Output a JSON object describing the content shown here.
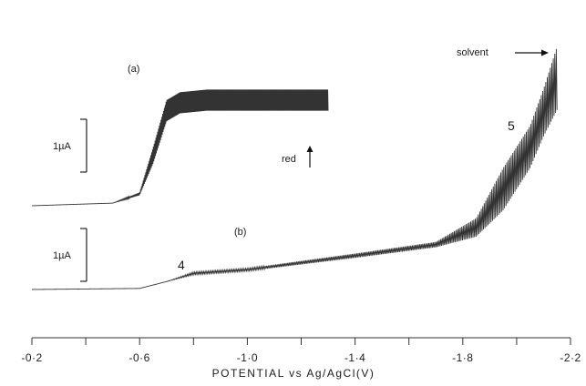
{
  "chart_data": {
    "type": "line",
    "xlabel": "POTENTIAL vs Ag/AgCl(V)",
    "ylabel": "",
    "xlim": [
      -0.2,
      -2.2
    ],
    "x_ticks": [
      "-0·2",
      "-0·6",
      "-1·0",
      "-1·4",
      "-1·8",
      "-2·2"
    ],
    "x_tick_values": [
      -0.2,
      -0.6,
      -1.0,
      -1.4,
      -1.8,
      -2.2
    ],
    "scale_bar_label": "1µA",
    "series": [
      {
        "name": "(a)",
        "envelope_low": [
          [
            -0.2,
            0.0
          ],
          [
            -0.5,
            0.05
          ],
          [
            -0.6,
            0.2
          ],
          [
            -0.65,
            0.8
          ],
          [
            -0.7,
            1.6
          ],
          [
            -0.75,
            1.75
          ],
          [
            -0.85,
            1.8
          ],
          [
            -1.3,
            1.8
          ]
        ],
        "envelope_high": [
          [
            -0.2,
            0.0
          ],
          [
            -0.5,
            0.05
          ],
          [
            -0.6,
            0.25
          ],
          [
            -0.65,
            1.1
          ],
          [
            -0.7,
            2.0
          ],
          [
            -0.75,
            2.15
          ],
          [
            -0.85,
            2.2
          ],
          [
            -1.3,
            2.2
          ]
        ]
      },
      {
        "name": "(b)",
        "envelope_low": [
          [
            -0.2,
            0.0
          ],
          [
            -0.6,
            0.02
          ],
          [
            -0.7,
            0.15
          ],
          [
            -0.8,
            0.28
          ],
          [
            -1.0,
            0.35
          ],
          [
            -1.4,
            0.6
          ],
          [
            -1.7,
            0.8
          ],
          [
            -1.85,
            1.0
          ],
          [
            -1.95,
            1.5
          ],
          [
            -2.05,
            2.3
          ],
          [
            -2.1,
            2.9
          ],
          [
            -2.15,
            3.4
          ]
        ],
        "envelope_high": [
          [
            -0.2,
            0.0
          ],
          [
            -0.6,
            0.02
          ],
          [
            -0.7,
            0.15
          ],
          [
            -0.8,
            0.33
          ],
          [
            -1.0,
            0.4
          ],
          [
            -1.4,
            0.68
          ],
          [
            -1.7,
            0.9
          ],
          [
            -1.85,
            1.35
          ],
          [
            -1.95,
            2.3
          ],
          [
            -2.05,
            3.1
          ],
          [
            -2.1,
            3.8
          ],
          [
            -2.15,
            4.6
          ]
        ]
      }
    ],
    "annotations": {
      "label_a": "(a)",
      "label_b": "(b)",
      "label_4": "4",
      "label_5": "5",
      "red_label": "red",
      "solvent_label": "solvent"
    }
  }
}
